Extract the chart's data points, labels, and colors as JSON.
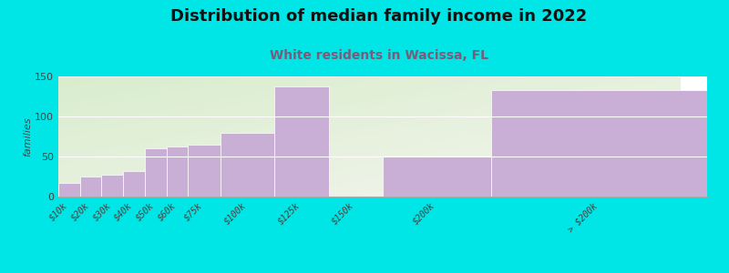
{
  "title": "Distribution of median family income in 2022",
  "subtitle": "White residents in Wacissa, FL",
  "bin_edges": [
    0,
    10,
    20,
    30,
    40,
    50,
    60,
    75,
    100,
    125,
    150,
    200,
    300
  ],
  "bin_labels": [
    "$10k",
    "$20k",
    "$30k",
    "$40k",
    "$50k",
    "$60k",
    "$75k",
    "$100k",
    "$125k",
    "$150k",
    "$200k",
    "> $200k"
  ],
  "values": [
    17,
    25,
    27,
    32,
    60,
    62,
    65,
    80,
    137,
    0,
    51,
    133
  ],
  "bar_color": "#c9aed6",
  "background_outer": "#00e5e5",
  "ylim": [
    0,
    150
  ],
  "yticks": [
    0,
    50,
    100,
    150
  ],
  "ylabel": "families",
  "title_fontsize": 13,
  "subtitle_fontsize": 10,
  "subtitle_color": "#7a5c7a",
  "tick_fontsize": 7,
  "ylabel_fontsize": 8
}
